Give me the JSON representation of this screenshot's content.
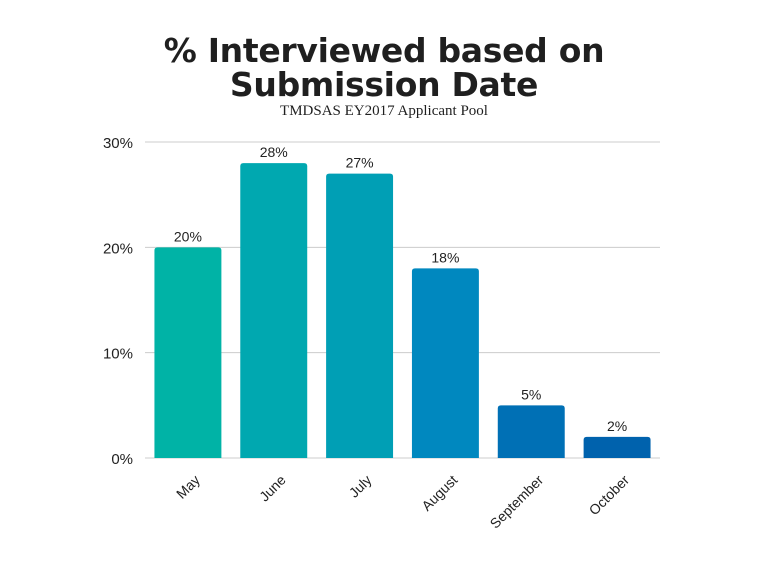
{
  "chart_data": {
    "type": "bar",
    "title_line1": "% Interviewed based on",
    "title_line2": "Submission Date",
    "subtitle": "TMDSAS EY2017 Applicant Pool",
    "categories": [
      "May",
      "June",
      "July",
      "August",
      "September",
      "October"
    ],
    "values": [
      20,
      28,
      27,
      18,
      5,
      2
    ],
    "data_labels": [
      "20%",
      "28%",
      "27%",
      "18%",
      "5%",
      "2%"
    ],
    "y_ticks": [
      0,
      10,
      20,
      30
    ],
    "y_tick_labels": [
      "0%",
      "10%",
      "20%",
      "30%"
    ],
    "ylim": [
      0,
      30
    ],
    "xlabel": "",
    "ylabel": "",
    "grid": true,
    "legend": "none",
    "bar_colors": [
      "#00b3a6",
      "#00a8b0",
      "#009fb5",
      "#0088bf",
      "#0070b5",
      "#0062ad"
    ],
    "grid_color": "#cccccc"
  }
}
